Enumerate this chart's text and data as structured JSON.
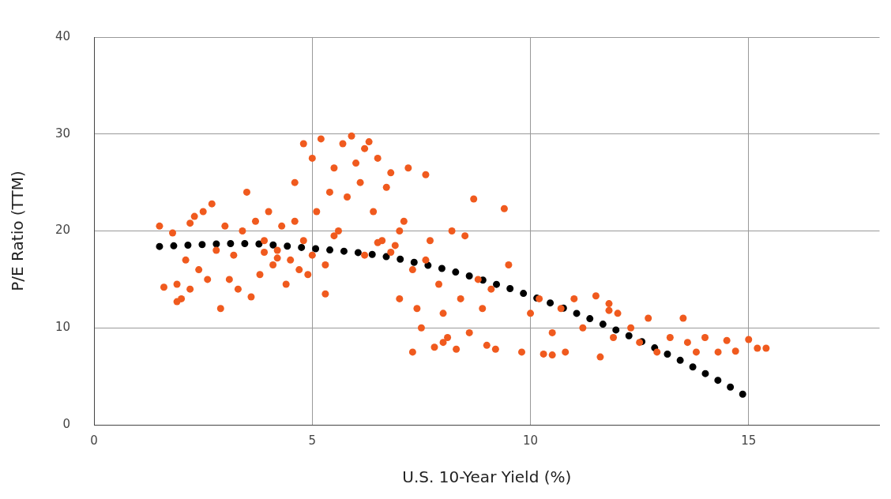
{
  "chart_data": {
    "type": "scatter",
    "xlabel": "U.S. 10-Year Yield (%)",
    "ylabel": "P/E Ratio (TTM)",
    "xlim": [
      0,
      18
    ],
    "ylim": [
      0,
      40
    ],
    "xticks": [
      0,
      5,
      10,
      15
    ],
    "yticks": [
      0,
      10,
      20,
      30,
      40
    ],
    "grid": true,
    "legend": false,
    "marker": "circle",
    "series": [
      {
        "type": "scatter",
        "color": "#f05a1e",
        "x": [
          1.5,
          1.6,
          1.8,
          1.9,
          2.0,
          2.1,
          2.2,
          2.3,
          2.4,
          2.5,
          2.6,
          2.7,
          2.8,
          2.9,
          3.0,
          3.1,
          3.2,
          3.4,
          3.5,
          3.6,
          3.7,
          3.8,
          3.9,
          4.0,
          4.1,
          4.2,
          4.3,
          4.4,
          4.5,
          4.6,
          4.7,
          4.8,
          4.9,
          5.0,
          4.6,
          4.8,
          5.0,
          5.1,
          5.2,
          5.3,
          5.4,
          5.5,
          5.6,
          5.7,
          5.8,
          5.9,
          6.0,
          6.1,
          6.2,
          6.3,
          6.4,
          6.5,
          6.6,
          6.7,
          6.8,
          6.9,
          7.0,
          7.1,
          7.2,
          7.3,
          7.4,
          7.5,
          7.6,
          7.7,
          7.8,
          7.9,
          8.0,
          8.1,
          8.2,
          8.3,
          8.4,
          8.5,
          8.6,
          8.7,
          8.8,
          8.9,
          9.0,
          9.1,
          9.2,
          9.4,
          9.5,
          9.8,
          10.0,
          10.2,
          10.3,
          10.5,
          10.7,
          10.8,
          11.0,
          11.2,
          11.5,
          11.6,
          11.8,
          11.9,
          12.0,
          12.3,
          12.5,
          12.7,
          12.9,
          13.2,
          13.5,
          13.6,
          13.8,
          14.0,
          14.3,
          14.5,
          14.7,
          15.0,
          15.2,
          15.4,
          7.3,
          7.6,
          6.2,
          6.5,
          5.5,
          3.3,
          2.2,
          1.9,
          4.2,
          3.9,
          7.0,
          8.0,
          6.8,
          5.3,
          10.5,
          11.8
        ],
        "values": [
          20.5,
          14.2,
          19.8,
          14.5,
          13.0,
          17,
          20.8,
          21.5,
          16,
          22,
          15,
          22.8,
          18,
          12,
          20.5,
          15,
          17.5,
          20,
          24,
          13.2,
          21,
          15.5,
          19,
          22,
          16.5,
          18,
          20.5,
          14.5,
          17,
          21,
          16,
          19,
          15.5,
          17.5,
          25,
          29,
          27.5,
          22,
          29.5,
          13.5,
          24,
          26.5,
          20,
          29,
          23.5,
          29.8,
          27,
          25,
          28.5,
          29.2,
          22,
          27.5,
          19,
          24.5,
          26,
          18.5,
          20,
          21,
          26.5,
          16,
          12,
          10,
          25.8,
          19,
          8,
          14.5,
          11.5,
          9,
          20,
          7.8,
          13,
          19.5,
          9.5,
          23.3,
          15,
          12,
          8.2,
          14,
          7.8,
          22.3,
          16.5,
          7.5,
          11.5,
          13,
          7.3,
          9.5,
          12,
          7.5,
          13,
          10,
          13.3,
          7,
          12.5,
          9,
          11.5,
          10,
          8.5,
          11,
          7.5,
          9,
          11,
          8.5,
          7.5,
          9,
          7.5,
          8.7,
          7.6,
          8.8,
          7.9,
          7.9,
          7.5,
          17,
          17.5,
          18.8,
          19.5,
          14,
          14,
          12.7,
          17.2,
          17.8,
          13,
          8.5,
          17.8,
          16.5,
          7.2,
          11.8
        ]
      },
      {
        "type": "line",
        "color": "#000000",
        "line_style": "dotted",
        "marker": "none",
        "x": [
          1.5,
          2,
          2.5,
          3,
          3.6,
          4,
          4.5,
          5,
          5.5,
          6,
          6.5,
          7,
          7.5,
          8,
          8.5,
          9,
          9.5,
          10,
          10.5,
          11,
          11.5,
          12,
          12.5,
          13,
          13.5,
          14,
          14.5,
          15
        ],
        "values": [
          18.4,
          18.5,
          18.6,
          18.7,
          18.7,
          18.6,
          18.4,
          18.2,
          18.0,
          17.8,
          17.5,
          17.1,
          16.6,
          16.1,
          15.5,
          14.8,
          14.1,
          13.3,
          12.5,
          11.6,
          10.7,
          9.7,
          8.7,
          7.6,
          6.5,
          5.3,
          4.1,
          2.8
        ]
      }
    ]
  }
}
